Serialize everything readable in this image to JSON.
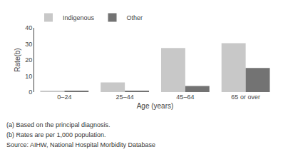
{
  "chart_data": {
    "type": "bar",
    "categories": [
      "0–24",
      "25–44",
      "45–64",
      "65 or over"
    ],
    "series": [
      {
        "name": "Indigenous",
        "color": "#c8c8c8",
        "values": [
          0.8,
          6.0,
          27.5,
          30.5
        ]
      },
      {
        "name": "Other",
        "color": "#737373",
        "values": [
          0.5,
          0.7,
          3.8,
          15.0
        ]
      }
    ],
    "xlabel": "Age (years)",
    "ylabel": "Rate(b)",
    "ylim": [
      0,
      40
    ],
    "yticks": [
      0,
      10,
      20,
      30,
      40
    ],
    "grid": false,
    "legend": "top",
    "annotations": [
      "(a) Based on the principal diagnosis.",
      "(b) Rates are per 1,000 population.",
      "Source: AIHW, National Hospital Morbidity Database"
    ]
  }
}
